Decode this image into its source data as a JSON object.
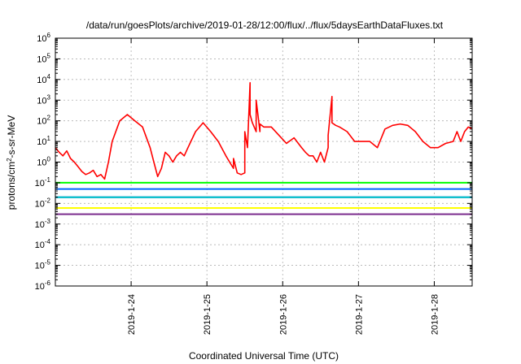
{
  "chart_data": {
    "type": "line",
    "title": "/data/run/goesPlots/archive/2019-01-28/12:00/flux/../flux/5daysEarthDataFluxes.txt",
    "xlabel": "Coordinated Universal Time (UTC)",
    "ylabel_base": "protons/cm",
    "ylabel_sup": "2",
    "ylabel_rest": "-s-sr-MeV",
    "y_scale": "log",
    "ylim": [
      1e-06,
      1000000
    ],
    "xlim": [
      "2019-01-23T00:00",
      "2019-01-28T12:00"
    ],
    "grid": true,
    "legend": "none",
    "y_ticks": [
      {
        "value": 1e-06,
        "mantissa": "10",
        "exp": "-6"
      },
      {
        "value": 1e-05,
        "mantissa": "10",
        "exp": "-5"
      },
      {
        "value": 0.0001,
        "mantissa": "10",
        "exp": "-4"
      },
      {
        "value": 0.001,
        "mantissa": "10",
        "exp": "-3"
      },
      {
        "value": 0.01,
        "mantissa": "10",
        "exp": "-2"
      },
      {
        "value": 0.1,
        "mantissa": "10",
        "exp": "-1"
      },
      {
        "value": 1,
        "mantissa": "10",
        "exp": "0"
      },
      {
        "value": 10,
        "mantissa": "10",
        "exp": "1"
      },
      {
        "value": 100,
        "mantissa": "10",
        "exp": "2"
      },
      {
        "value": 1000,
        "mantissa": "10",
        "exp": "3"
      },
      {
        "value": 10000,
        "mantissa": "10",
        "exp": "4"
      },
      {
        "value": 100000,
        "mantissa": "10",
        "exp": "5"
      },
      {
        "value": 1000000,
        "mantissa": "10",
        "exp": "6"
      }
    ],
    "x_ticks": [
      {
        "value": "2019-01-24T00:00",
        "label": "2019-1-24"
      },
      {
        "value": "2019-01-25T00:00",
        "label": "2019-1-25"
      },
      {
        "value": "2019-01-26T00:00",
        "label": "2019-1-26"
      },
      {
        "value": "2019-01-27T00:00",
        "label": "2019-1-27"
      },
      {
        "value": "2019-01-28T00:00",
        "label": "2019-1-28"
      }
    ],
    "series": [
      {
        "color": "#ff0000",
        "x": [
          "2019-01-23T00:00",
          "2019-01-23T01:12",
          "2019-01-23T02:24",
          "2019-01-23T03:36",
          "2019-01-23T04:48",
          "2019-01-23T06:00",
          "2019-01-23T07:12",
          "2019-01-23T08:24",
          "2019-01-23T09:36",
          "2019-01-23T10:48",
          "2019-01-23T12:00",
          "2019-01-23T13:12",
          "2019-01-23T14:24",
          "2019-01-23T15:36",
          "2019-01-23T16:48",
          "2019-01-23T18:00",
          "2019-01-23T20:24",
          "2019-01-23T22:48",
          "2019-01-24T01:12",
          "2019-01-24T03:36",
          "2019-01-24T06:00",
          "2019-01-24T07:12",
          "2019-01-24T08:24",
          "2019-01-24T09:36",
          "2019-01-24T10:48",
          "2019-01-24T12:00",
          "2019-01-24T13:12",
          "2019-01-24T14:24",
          "2019-01-24T15:36",
          "2019-01-24T16:48",
          "2019-01-24T18:00",
          "2019-01-24T20:24",
          "2019-01-24T22:48",
          "2019-01-25T01:12",
          "2019-01-25T03:36",
          "2019-01-25T06:00",
          "2019-01-25T07:12",
          "2019-01-25T08:24",
          "2019-01-25T08:24",
          "2019-01-25T09:36",
          "2019-01-25T10:48",
          "2019-01-25T12:00",
          "2019-01-25T12:00",
          "2019-01-25T12:00",
          "2019-01-25T12:50",
          "2019-01-25T13:40",
          "2019-01-25T13:40",
          "2019-01-25T14:24",
          "2019-01-25T15:36",
          "2019-01-25T15:36",
          "2019-01-25T16:48",
          "2019-01-25T16:48",
          "2019-01-25T18:00",
          "2019-01-25T20:24",
          "2019-01-25T22:48",
          "2019-01-26T01:12",
          "2019-01-26T03:36",
          "2019-01-26T06:00",
          "2019-01-26T07:12",
          "2019-01-26T08:24",
          "2019-01-26T09:36",
          "2019-01-26T10:48",
          "2019-01-26T12:00",
          "2019-01-26T13:12",
          "2019-01-26T14:24",
          "2019-01-26T14:24",
          "2019-01-26T15:36",
          "2019-01-26T15:36",
          "2019-01-26T16:48",
          "2019-01-26T18:00",
          "2019-01-26T20:24",
          "2019-01-26T22:48",
          "2019-01-27T01:12",
          "2019-01-27T03:36",
          "2019-01-27T06:00",
          "2019-01-27T08:24",
          "2019-01-27T10:48",
          "2019-01-27T13:12",
          "2019-01-27T15:36",
          "2019-01-27T18:00",
          "2019-01-27T20:24",
          "2019-01-27T22:48",
          "2019-01-28T01:12",
          "2019-01-28T03:36",
          "2019-01-28T06:00",
          "2019-01-28T07:12",
          "2019-01-28T08:24",
          "2019-01-28T09:36",
          "2019-01-28T10:48",
          "2019-01-28T12:00"
        ],
        "y": [
          5,
          3,
          2,
          3.5,
          1.5,
          1,
          0.6,
          0.35,
          0.25,
          0.3,
          0.4,
          0.2,
          0.25,
          0.15,
          1,
          10,
          100,
          200,
          100,
          50,
          5,
          1,
          0.2,
          0.5,
          3,
          2,
          1,
          2,
          3,
          2,
          5,
          30,
          80,
          30,
          10,
          2,
          1,
          0.5,
          1.5,
          0.3,
          0.25,
          0.3,
          8,
          30,
          5,
          7000,
          200,
          80,
          30,
          1000,
          30,
          70,
          50,
          50,
          20,
          8,
          15,
          5,
          3,
          2,
          2,
          1,
          3,
          1,
          5,
          20,
          1500,
          80,
          60,
          50,
          30,
          10,
          10,
          10,
          5,
          40,
          60,
          70,
          60,
          30,
          10,
          5,
          5,
          8,
          10,
          30,
          10,
          30,
          50,
          40
        ]
      },
      {
        "color": "#00ff00",
        "x": [
          "2019-01-23T00:00",
          "2019-01-28T12:00"
        ],
        "y": [
          0.1,
          0.1
        ]
      },
      {
        "color": "#0066ff",
        "x": [
          "2019-01-23T00:00",
          "2019-01-28T12:00"
        ],
        "y": [
          0.05,
          0.05
        ]
      },
      {
        "color": "#00cccc",
        "x": [
          "2019-01-23T00:00",
          "2019-01-28T12:00"
        ],
        "y": [
          0.02,
          0.02
        ]
      },
      {
        "color": "#0000aa",
        "x": [
          "2019-01-23T00:00",
          "2019-01-28T12:00"
        ],
        "y": [
          0.02,
          0.02
        ]
      },
      {
        "color": "#ffff00",
        "x": [
          "2019-01-23T00:00",
          "2019-01-28T12:00"
        ],
        "y": [
          0.006,
          0.006
        ]
      },
      {
        "color": "#7b2d8e",
        "x": [
          "2019-01-23T00:00",
          "2019-01-28T12:00"
        ],
        "y": [
          0.003,
          0.003
        ]
      }
    ]
  }
}
